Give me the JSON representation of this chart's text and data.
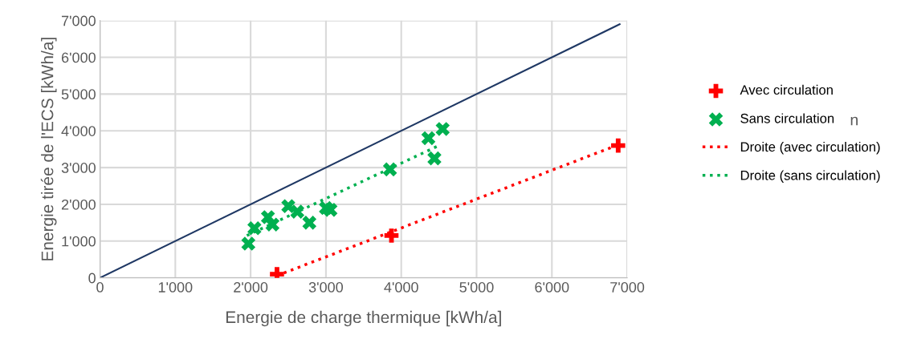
{
  "chart_data": {
    "type": "scatter",
    "xlabel": "Energie de charge thermique [kWh/a]",
    "ylabel": "Energie tirée de l'ECS [kWh/a]",
    "xlim": [
      0,
      7000
    ],
    "ylim": [
      0,
      7000
    ],
    "xticks": [
      0,
      {
        "value": 1000,
        "label": "1'000"
      },
      {
        "value": 2000,
        "label": "2'000"
      },
      {
        "value": 3000,
        "label": "3'000"
      },
      {
        "value": 4000,
        "label": "4'000"
      },
      {
        "value": 5000,
        "label": "5'000"
      },
      {
        "value": 6000,
        "label": "6'000"
      },
      {
        "value": 7000,
        "label": "7'000"
      }
    ],
    "yticks": [
      0,
      {
        "value": 1000,
        "label": "1'000"
      },
      {
        "value": 2000,
        "label": "2'000"
      },
      {
        "value": 3000,
        "label": "3'000"
      },
      {
        "value": 4000,
        "label": "4'000"
      },
      {
        "value": 5000,
        "label": "5'000"
      },
      {
        "value": 6000,
        "label": "6'000"
      },
      {
        "value": 7000,
        "label": "7'000"
      }
    ],
    "grid": true,
    "legend": "right",
    "annotations": [
      "n"
    ],
    "series": [
      {
        "type": "line",
        "color": "#1f3864",
        "line_style": "solid",
        "marker": "none",
        "x": [
          0,
          6900
        ],
        "values": [
          0,
          6900
        ]
      },
      {
        "name": "Avec circulation",
        "color": "#ff0000",
        "marker": "plus",
        "x": [
          2350,
          3870,
          6880
        ],
        "values": [
          100,
          1150,
          3600
        ]
      },
      {
        "name": "Sans circulation",
        "color": "#00b050",
        "marker": "cross",
        "x": [
          1970,
          2050,
          2230,
          2290,
          2500,
          2620,
          2780,
          3000,
          3060,
          3850,
          4360,
          4550,
          4440
        ],
        "values": [
          930,
          1350,
          1650,
          1450,
          1950,
          1800,
          1500,
          1900,
          1850,
          2950,
          3800,
          4050,
          3250
        ]
      },
      {
        "name": "Droite (avec circulation)",
        "type": "line",
        "color": "#ff0000",
        "line_style": "dotted",
        "marker": "none",
        "x": [
          2350,
          6880
        ],
        "values": [
          60,
          3620
        ]
      },
      {
        "name": "Droite (sans circulation)",
        "type": "line",
        "color": "#00b050",
        "line_style": "dotted",
        "marker": "none",
        "x": [
          1950,
          4500
        ],
        "values": [
          1150,
          3600
        ]
      }
    ]
  }
}
